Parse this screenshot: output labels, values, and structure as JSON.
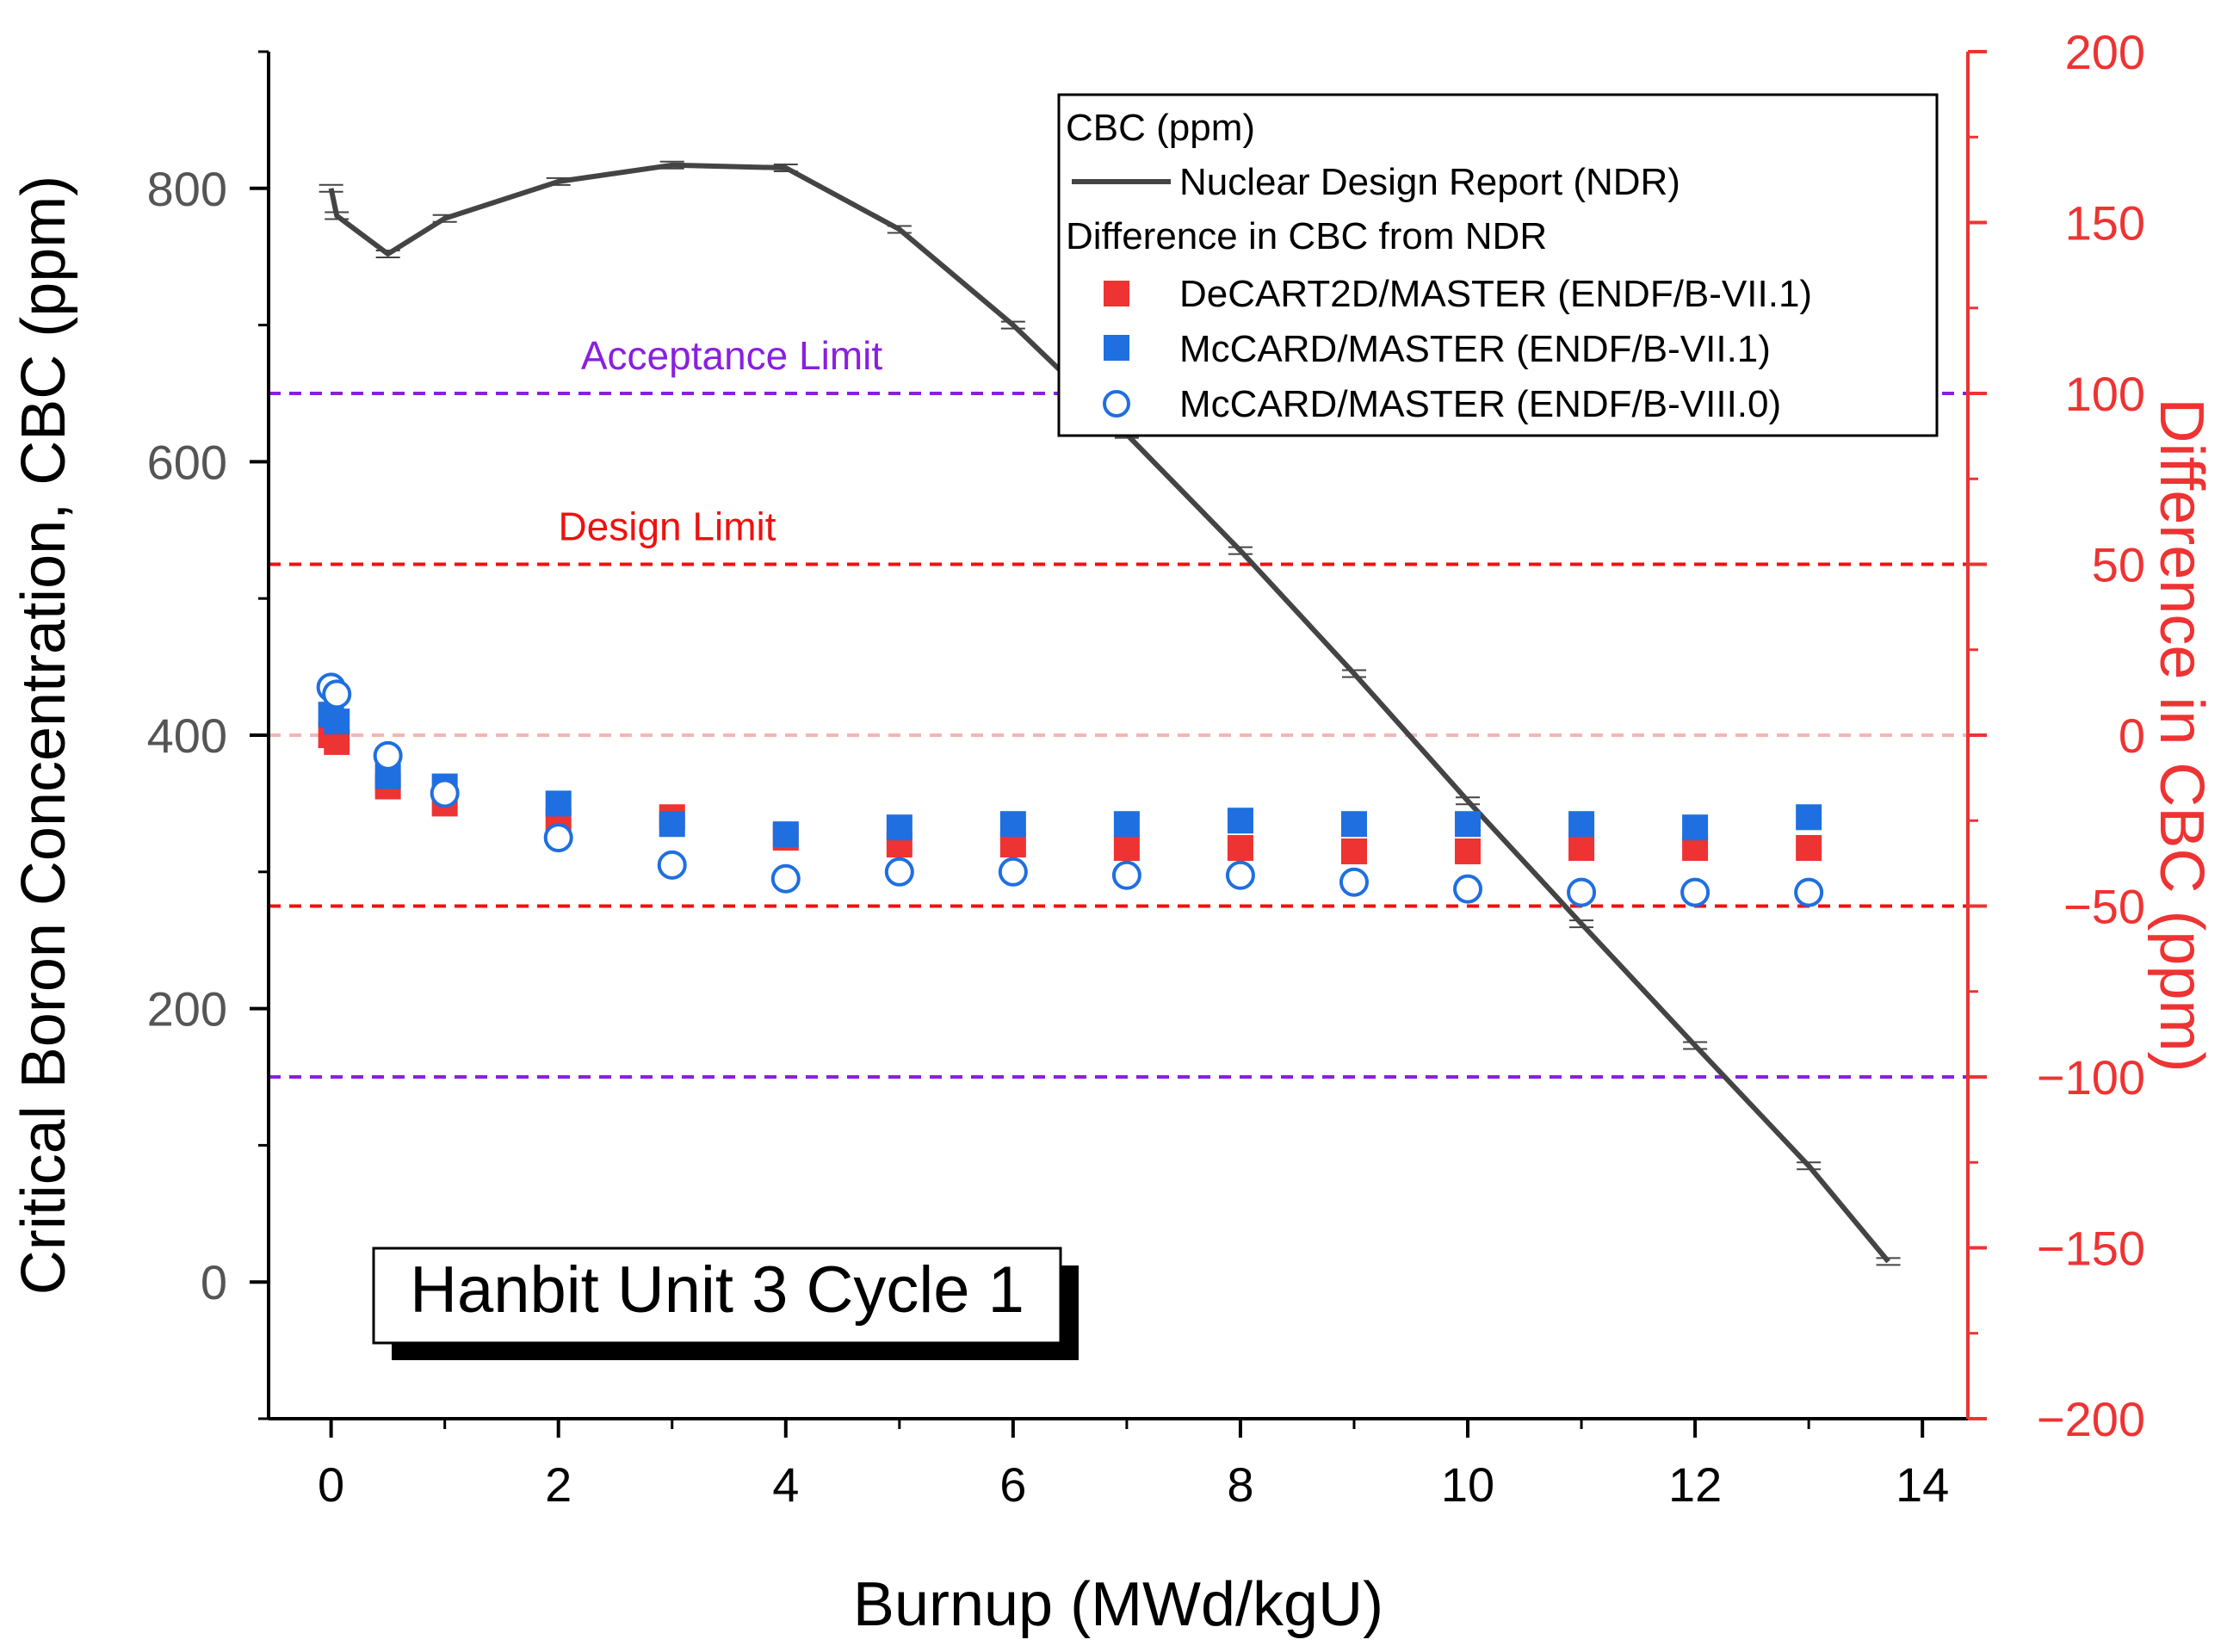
{
  "chart_data": {
    "type": "scatter",
    "x_axis": {
      "label": "Burnup (MWd/kgU)",
      "range": [
        -0.55,
        14.4
      ],
      "ticks": [
        0,
        2,
        4,
        6,
        8,
        10,
        12,
        14
      ],
      "tick_labels": [
        "0",
        "2",
        "4",
        "6",
        "8",
        "10",
        "12",
        "14"
      ]
    },
    "y_axis_left": {
      "label": "Critical Boron Concentration, CBC (ppm)",
      "range": [
        -100,
        900
      ],
      "ticks": [
        0,
        200,
        400,
        600,
        800
      ],
      "tick_labels": [
        "0",
        "200",
        "400",
        "600",
        "800"
      ],
      "color": "#555555"
    },
    "y_axis_right": {
      "label": "Difference in CBC (ppm)",
      "range": [
        -200,
        200
      ],
      "ticks": [
        -200,
        -150,
        -100,
        -50,
        0,
        50,
        100,
        150,
        200
      ],
      "tick_labels": [
        "−200",
        "−150",
        "−100",
        "−50",
        "0",
        "50",
        "100",
        "150",
        "200"
      ],
      "color": "#ee3333"
    },
    "ndr_series": {
      "name": "Nuclear Design Report (NDR)",
      "axis": "left",
      "color": "#444444",
      "x": [
        0,
        0.05,
        0.5,
        1,
        2,
        3,
        4,
        5,
        6,
        7,
        8,
        9,
        10,
        11,
        12,
        13,
        13.7
      ],
      "y": [
        800,
        780,
        752,
        778,
        805,
        817,
        815,
        770,
        700,
        620,
        535,
        445,
        352,
        262,
        173,
        85,
        15
      ]
    },
    "diff_series": [
      {
        "name": "DeCART2D/MASTER (ENDF/B-VII.1)",
        "axis": "right",
        "marker": "filled-square",
        "color": "#ee3333",
        "x": [
          0,
          0.05,
          0.5,
          1,
          2,
          3,
          4,
          5,
          6,
          7,
          8,
          9,
          10,
          11,
          12,
          13
        ],
        "y": [
          0,
          -2,
          -15,
          -20,
          -25,
          -24,
          -30,
          -32,
          -32,
          -33,
          -33,
          -34,
          -34,
          -33,
          -33,
          -33
        ]
      },
      {
        "name": "McCARD/MASTER (ENDF/B-VII.1)",
        "axis": "right",
        "marker": "filled-square",
        "color": "#1f6fe0",
        "x": [
          0,
          0.05,
          0.5,
          1,
          2,
          3,
          4,
          5,
          6,
          7,
          8,
          9,
          10,
          11,
          12,
          13
        ],
        "y": [
          6,
          4,
          -12,
          -15,
          -20,
          -26,
          -29,
          -27,
          -26,
          -26,
          -25,
          -26,
          -26,
          -26,
          -27,
          -24
        ]
      },
      {
        "name": "McCARD/MASTER (ENDF/B-VIII.0)",
        "axis": "right",
        "marker": "open-circle",
        "color": "#1f6fe0",
        "x": [
          0,
          0.05,
          0.5,
          1,
          2,
          3,
          4,
          5,
          6,
          7,
          8,
          9,
          10,
          11,
          12,
          13
        ],
        "y": [
          14,
          12,
          -6,
          -17,
          -30,
          -38,
          -42,
          -40,
          -40,
          -41,
          -41,
          -43,
          -45,
          -46,
          -46,
          -46
        ]
      }
    ],
    "limits": [
      {
        "name": "Acceptance Limit",
        "values": [
          100,
          -100
        ],
        "color": "#8a1fe0",
        "label_at": 100
      },
      {
        "name": "Design Limit",
        "values": [
          50,
          -50
        ],
        "color": "#ee1111",
        "label_at": 50
      }
    ],
    "zero_line": {
      "value": 0,
      "color": "#f5b5b5"
    },
    "legend": {
      "position": "top-right",
      "header": "CBC (ppm)",
      "line_label": "Nuclear Design Report (NDR)",
      "subheader": "Difference in CBC from NDR",
      "marker_labels": [
        "DeCART2D/MASTER (ENDF/B-VII.1)",
        "McCARD/MASTER (ENDF/B-VII.1)",
        "McCARD/MASTER (ENDF/B-VIII.0)"
      ]
    },
    "annotation": "Hanbit Unit 3 Cycle 1"
  }
}
